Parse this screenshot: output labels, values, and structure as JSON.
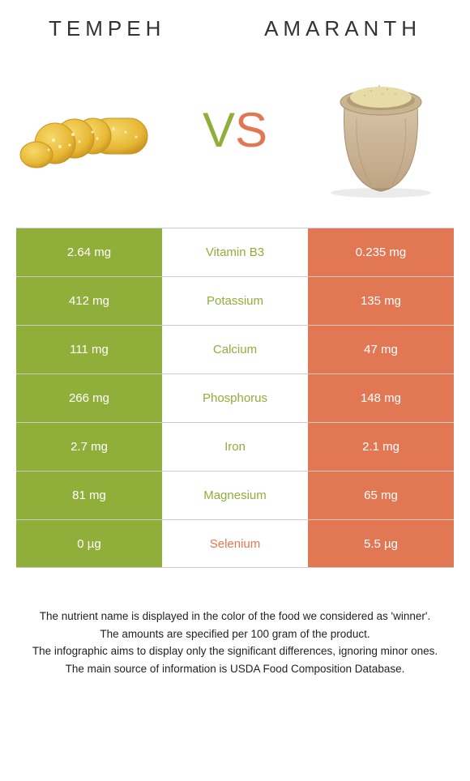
{
  "left_name": "TEMPEH",
  "right_name": "AMARANTH",
  "colors": {
    "left_bg": "#8fae3a",
    "right_bg": "#e27754",
    "left_text": "#ffffff",
    "right_text": "#ffffff",
    "mid_left_winner": "#8fae3a",
    "mid_right_winner": "#e27754"
  },
  "rows": [
    {
      "left": "2.64 mg",
      "mid": "Vitamin B3",
      "right": "0.235 mg",
      "winner": "left"
    },
    {
      "left": "412 mg",
      "mid": "Potassium",
      "right": "135 mg",
      "winner": "left"
    },
    {
      "left": "111 mg",
      "mid": "Calcium",
      "right": "47 mg",
      "winner": "left"
    },
    {
      "left": "266 mg",
      "mid": "Phosphorus",
      "right": "148 mg",
      "winner": "left"
    },
    {
      "left": "2.7 mg",
      "mid": "Iron",
      "right": "2.1 mg",
      "winner": "left"
    },
    {
      "left": "81 mg",
      "mid": "Magnesium",
      "right": "65 mg",
      "winner": "left"
    },
    {
      "left": "0 µg",
      "mid": "Selenium",
      "right": "5.5 µg",
      "winner": "right"
    }
  ],
  "footnotes": [
    "The nutrient name is displayed in the color of the food we considered as 'winner'.",
    "The amounts are specified per 100 gram of the product.",
    "The infographic aims to display only the significant differences, ignoring minor ones.",
    "The main source of information is USDA Food Composition Database."
  ]
}
